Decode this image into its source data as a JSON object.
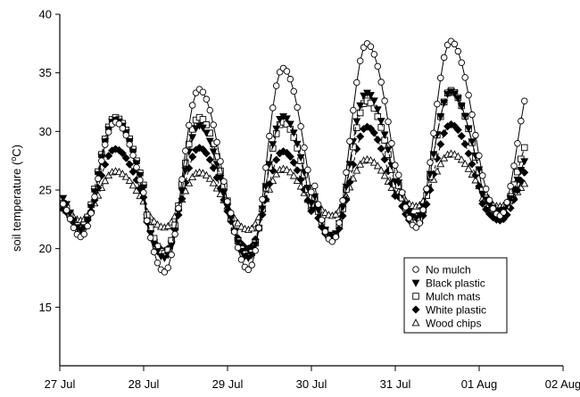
{
  "chart_data": {
    "type": "line",
    "title": "",
    "xlabel": "",
    "ylabel_main": "soil temperature (",
    "ylabel_sup": "o",
    "ylabel_end": "C)",
    "xlim": [
      0,
      6
    ],
    "ylim": [
      10,
      40
    ],
    "x_ticks": [
      {
        "value": 0,
        "label": "27 Jul"
      },
      {
        "value": 1,
        "label": "28 Jul"
      },
      {
        "value": 2,
        "label": "29 Jul"
      },
      {
        "value": 3,
        "label": "30 Jul"
      },
      {
        "value": 4,
        "label": "31 Jul"
      },
      {
        "value": 5,
        "label": "01 Aug"
      },
      {
        "value": 6,
        "label": "02 Aug"
      }
    ],
    "y_ticks": [
      15,
      20,
      25,
      30,
      35,
      40
    ],
    "legend_position": "bottom-right",
    "series": [
      {
        "name": "No mulch",
        "marker": "circle-open",
        "dash": "solid",
        "days": [
          {
            "day": 0,
            "min": 21.0,
            "max": 30.8,
            "end": 24.0
          },
          {
            "day": 1,
            "min": 18.0,
            "max": 33.6
          },
          {
            "day": 2,
            "min": 18.2,
            "max": 35.4
          },
          {
            "day": 3,
            "min": 20.6,
            "max": 37.5
          },
          {
            "day": 4,
            "min": 21.8,
            "max": 37.7
          },
          {
            "day": 5,
            "min": 22.8,
            "max": 35.0
          }
        ]
      },
      {
        "name": "Black plastic",
        "marker": "triangle-down-filled",
        "dash": "long",
        "days": [
          {
            "day": 0,
            "min": 21.6,
            "max": 31.0,
            "end": 24.5
          },
          {
            "day": 1,
            "min": 19.2,
            "max": 30.5
          },
          {
            "day": 2,
            "min": 19.2,
            "max": 31.3
          },
          {
            "day": 3,
            "min": 21.0,
            "max": 33.3
          },
          {
            "day": 4,
            "min": 22.6,
            "max": 33.4
          },
          {
            "day": 5,
            "min": 23.2,
            "max": 28.5
          }
        ]
      },
      {
        "name": "Mulch mats",
        "marker": "square-open",
        "dash": "medium",
        "days": [
          {
            "day": 0,
            "min": 21.8,
            "max": 31.2,
            "end": 24.0
          },
          {
            "day": 1,
            "min": 19.6,
            "max": 31.2
          },
          {
            "day": 2,
            "min": 19.4,
            "max": 30.8
          },
          {
            "day": 3,
            "min": 21.0,
            "max": 32.6
          },
          {
            "day": 4,
            "min": 22.2,
            "max": 33.5
          },
          {
            "day": 5,
            "min": 23.0,
            "max": 30.0
          }
        ]
      },
      {
        "name": "White plastic",
        "marker": "diamond-filled",
        "dash": "short",
        "days": [
          {
            "day": 0,
            "min": 21.8,
            "max": 28.5,
            "end": 23.5
          },
          {
            "day": 1,
            "min": 19.8,
            "max": 28.6
          },
          {
            "day": 2,
            "min": 20.0,
            "max": 28.3
          },
          {
            "day": 3,
            "min": 20.8,
            "max": 30.4
          },
          {
            "day": 4,
            "min": 22.0,
            "max": 30.6
          },
          {
            "day": 5,
            "min": 22.4,
            "max": 27.5
          }
        ]
      },
      {
        "name": "Wood chips",
        "marker": "triangle-up-open",
        "dash": "dotted",
        "days": [
          {
            "day": 0,
            "min": 22.4,
            "max": 26.6,
            "end": 23.5
          },
          {
            "day": 1,
            "min": 21.8,
            "max": 26.5
          },
          {
            "day": 2,
            "min": 21.6,
            "max": 26.8
          },
          {
            "day": 3,
            "min": 22.8,
            "max": 27.6
          },
          {
            "day": 4,
            "min": 23.6,
            "max": 28.1
          },
          {
            "day": 5,
            "min": 23.6,
            "max": 26.0
          }
        ]
      }
    ]
  }
}
